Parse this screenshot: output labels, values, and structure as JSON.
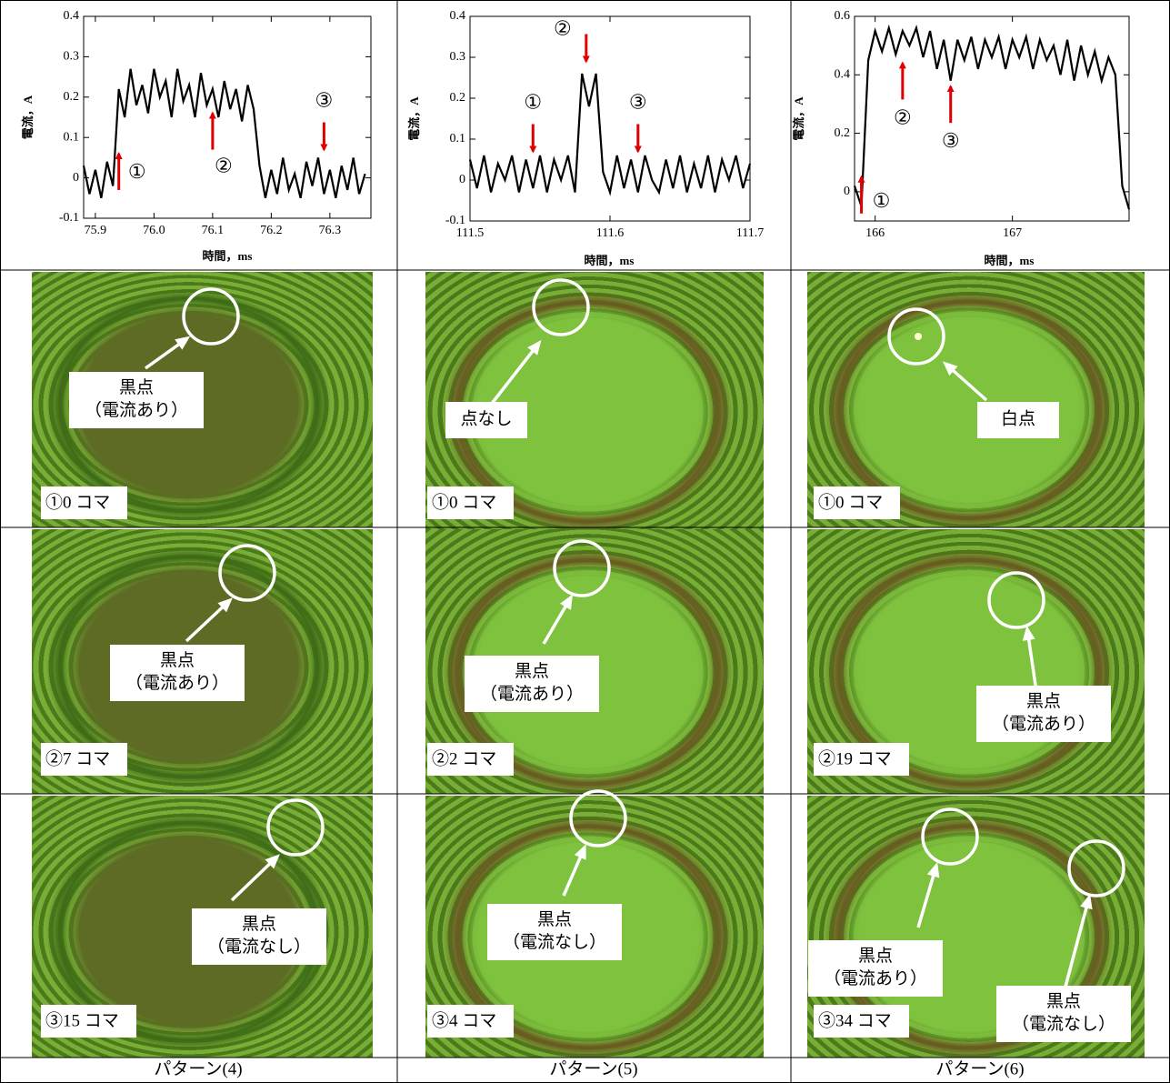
{
  "chart_data": [
    {
      "type": "line",
      "xlabel": "時間，ms",
      "ylabel": "電流，A",
      "color": "#000000",
      "xlim": [
        75.88,
        76.37
      ],
      "ylim": [
        -0.1,
        0.4
      ],
      "xticks": [
        75.9,
        {
          "value": 76,
          "label": "76.0"
        },
        76.1,
        76.2,
        76.3
      ],
      "yticks": [
        -0.1,
        0,
        0.1,
        0.2,
        0.3,
        0.4
      ],
      "x": [
        75.88,
        75.89,
        75.9,
        75.91,
        75.92,
        75.93,
        75.94,
        75.95,
        75.96,
        75.97,
        75.98,
        75.99,
        76.0,
        76.01,
        76.02,
        76.03,
        76.04,
        76.05,
        76.06,
        76.07,
        76.08,
        76.09,
        76.1,
        76.11,
        76.12,
        76.13,
        76.14,
        76.15,
        76.16,
        76.17,
        76.18,
        76.19,
        76.2,
        76.21,
        76.22,
        76.23,
        76.24,
        76.25,
        76.26,
        76.27,
        76.28,
        76.29,
        76.3,
        76.31,
        76.32,
        76.33,
        76.34,
        76.35,
        76.36
      ],
      "values": [
        0.03,
        -0.04,
        0.02,
        -0.05,
        0.04,
        -0.02,
        0.22,
        0.15,
        0.27,
        0.18,
        0.23,
        0.16,
        0.27,
        0.2,
        0.24,
        0.15,
        0.27,
        0.19,
        0.23,
        0.15,
        0.26,
        0.18,
        0.22,
        0.15,
        0.24,
        0.17,
        0.22,
        0.14,
        0.23,
        0.17,
        0.03,
        -0.05,
        0.02,
        -0.04,
        0.05,
        -0.03,
        0.01,
        -0.05,
        0.04,
        -0.02,
        0.05,
        -0.04,
        0.02,
        -0.05,
        0.03,
        -0.03,
        0.05,
        -0.04,
        0.01
      ],
      "annotations": [
        {
          "text": "①",
          "x": 75.94,
          "y": 0.06
        },
        {
          "text": "②",
          "x": 76.1,
          "y": 0.16
        },
        {
          "text": "③",
          "x": 76.29,
          "y": 0.07
        }
      ]
    },
    {
      "type": "line",
      "xlabel": "時間，ms",
      "ylabel": "電流，A",
      "color": "#000000",
      "xlim": [
        111.5,
        111.7
      ],
      "ylim": [
        -0.1,
        0.4
      ],
      "xticks": [
        111.5,
        111.6,
        111.7
      ],
      "yticks": [
        -0.1,
        0,
        0.1,
        0.2,
        0.3,
        0.4
      ],
      "x": [
        111.5,
        111.505,
        111.51,
        111.515,
        111.52,
        111.525,
        111.53,
        111.535,
        111.54,
        111.545,
        111.55,
        111.555,
        111.56,
        111.565,
        111.57,
        111.575,
        111.58,
        111.585,
        111.59,
        111.595,
        111.6,
        111.605,
        111.61,
        111.615,
        111.62,
        111.625,
        111.63,
        111.635,
        111.64,
        111.645,
        111.65,
        111.655,
        111.66,
        111.665,
        111.67,
        111.675,
        111.68,
        111.685,
        111.69,
        111.695,
        111.7
      ],
      "values": [
        0.05,
        -0.02,
        0.06,
        -0.03,
        0.04,
        0,
        0.06,
        -0.03,
        0.05,
        -0.02,
        0.06,
        -0.03,
        0.05,
        0,
        0.06,
        -0.03,
        0.26,
        0.18,
        0.26,
        0.02,
        -0.03,
        0.06,
        -0.02,
        0.05,
        -0.03,
        0.06,
        0,
        -0.03,
        0.05,
        -0.02,
        0.06,
        -0.03,
        0.04,
        -0.02,
        0.06,
        -0.03,
        0.05,
        0,
        0.06,
        -0.02,
        0.04
      ],
      "annotations": [
        {
          "text": "①",
          "x": 111.545,
          "y": 0.07
        },
        {
          "text": "②",
          "x": 111.583,
          "y": 0.29
        },
        {
          "text": "③",
          "x": 111.62,
          "y": 0.07
        }
      ]
    },
    {
      "type": "line",
      "xlabel": "時間，ms",
      "ylabel": "電流，A",
      "color": "#000000",
      "xlim": [
        165.85,
        167.85
      ],
      "ylim": [
        -0.1,
        0.6
      ],
      "xticks": [
        166,
        167
      ],
      "yticks": [
        0,
        0.2,
        0.4,
        0.6
      ],
      "x": [
        165.85,
        165.9,
        165.95,
        166,
        166.05,
        166.1,
        166.15,
        166.2,
        166.25,
        166.3,
        166.35,
        166.4,
        166.45,
        166.5,
        166.55,
        166.6,
        166.65,
        166.7,
        166.75,
        166.8,
        166.85,
        166.9,
        166.95,
        167,
        167.05,
        167.1,
        167.15,
        167.2,
        167.25,
        167.3,
        167.35,
        167.4,
        167.45,
        167.5,
        167.55,
        167.6,
        167.65,
        167.7,
        167.75,
        167.8,
        167.85
      ],
      "values": [
        0.02,
        -0.05,
        0.45,
        0.55,
        0.48,
        0.56,
        0.47,
        0.55,
        0.5,
        0.56,
        0.46,
        0.55,
        0.42,
        0.52,
        0.38,
        0.52,
        0.45,
        0.53,
        0.42,
        0.52,
        0.46,
        0.53,
        0.42,
        0.52,
        0.46,
        0.53,
        0.42,
        0.52,
        0.45,
        0.5,
        0.4,
        0.52,
        0.38,
        0.5,
        0.4,
        0.48,
        0.38,
        0.46,
        0.4,
        0.02,
        -0.06
      ],
      "annotations": [
        {
          "text": "①",
          "x": 165.9,
          "y": 0.05
        },
        {
          "text": "②",
          "x": 166.2,
          "y": 0.44
        },
        {
          "text": "③",
          "x": 166.55,
          "y": 0.36
        }
      ]
    }
  ],
  "panels": [
    [
      {
        "frame": "①0 コマ",
        "callouts": [
          {
            "lines": [
              "黒点",
              "（電流あり）"
            ]
          }
        ]
      },
      {
        "frame": "①0 コマ",
        "callouts": [
          {
            "lines": [
              "点なし"
            ]
          }
        ]
      },
      {
        "frame": "①0 コマ",
        "callouts": [
          {
            "lines": [
              "白点"
            ]
          }
        ]
      }
    ],
    [
      {
        "frame": "②7 コマ",
        "callouts": [
          {
            "lines": [
              "黒点",
              "（電流あり）"
            ]
          }
        ]
      },
      {
        "frame": "②2 コマ",
        "callouts": [
          {
            "lines": [
              "黒点",
              "（電流あり）"
            ]
          }
        ]
      },
      {
        "frame": "②19 コマ",
        "callouts": [
          {
            "lines": [
              "黒点",
              "（電流あり）"
            ]
          }
        ]
      }
    ],
    [
      {
        "frame": "③15 コマ",
        "callouts": [
          {
            "lines": [
              "黒点",
              "（電流なし）"
            ]
          }
        ]
      },
      {
        "frame": "③4 コマ",
        "callouts": [
          {
            "lines": [
              "黒点",
              "（電流なし）"
            ]
          }
        ]
      },
      {
        "frame": "③34 コマ",
        "callouts": [
          {
            "lines": [
              "黒点",
              "（電流あり）"
            ]
          },
          {
            "lines": [
              "黒点",
              "（電流なし）"
            ]
          }
        ]
      }
    ]
  ],
  "captions": [
    "パターン(4)",
    "パターン(5)",
    "パターン(6)"
  ]
}
